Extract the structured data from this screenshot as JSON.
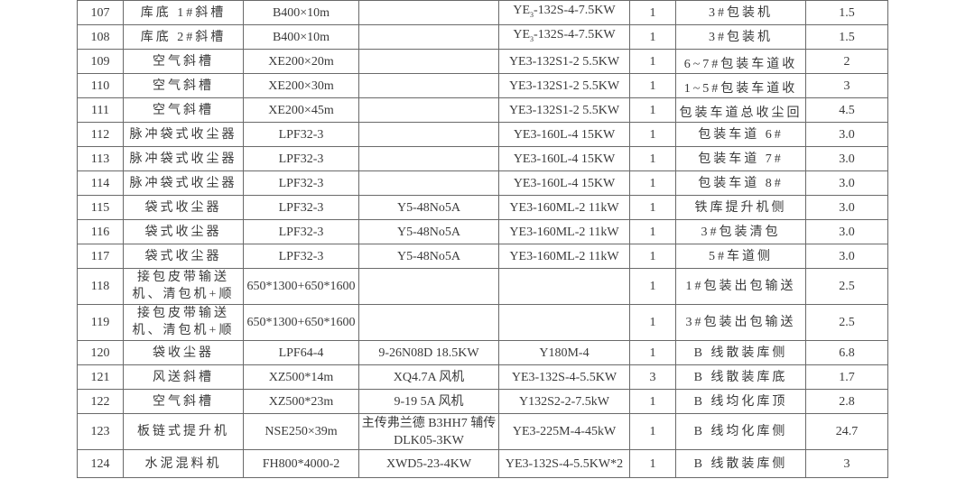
{
  "table": {
    "rows": [
      {
        "no": "107",
        "name": "库底 1#斜槽",
        "spec": "B400×10m",
        "fan": "",
        "motor": "YE",
        "motor_sub": "3",
        "motor_rest": "-132S-4-7.5KW",
        "qty": "1",
        "location": "3#包装机",
        "value": "1.5"
      },
      {
        "no": "108",
        "name": "库底 2#斜槽",
        "spec": "B400×10m",
        "fan": "",
        "motor": "YE",
        "motor_sub": "3",
        "motor_rest": "-132S-4-7.5KW",
        "qty": "1",
        "location": "3#包装机",
        "value": "1.5"
      },
      {
        "no": "109",
        "name": "空气斜槽",
        "spec": "XE200×20m",
        "fan": "",
        "motor": "YE3-132S1-2 5.5KW",
        "qty": "1",
        "location": "6~7#包装车道收尘回料",
        "value": "2"
      },
      {
        "no": "110",
        "name": "空气斜槽",
        "spec": "XE200×30m",
        "fan": "",
        "motor": "YE3-132S1-2 5.5KW",
        "qty": "1",
        "location": "1~5#包装车道收尘回料",
        "value": "3"
      },
      {
        "no": "111",
        "name": "空气斜槽",
        "spec": "XE200×45m",
        "fan": "",
        "motor": "YE3-132S1-2 5.5KW",
        "qty": "1",
        "location": "包装车道总收尘回料",
        "value": "4.5"
      },
      {
        "no": "112",
        "name": "脉冲袋式收尘器",
        "spec": "LPF32-3",
        "fan": "",
        "motor": "YE3-160L-4 15KW",
        "qty": "1",
        "location": "包装车道 6#",
        "value": "3.0"
      },
      {
        "no": "113",
        "name": "脉冲袋式收尘器",
        "spec": "LPF32-3",
        "fan": "",
        "motor": "YE3-160L-4 15KW",
        "qty": "1",
        "location": "包装车道 7#",
        "value": "3.0"
      },
      {
        "no": "114",
        "name": "脉冲袋式收尘器",
        "spec": "LPF32-3",
        "fan": "",
        "motor": "YE3-160L-4 15KW",
        "qty": "1",
        "location": "包装车道 8#",
        "value": "3.0"
      },
      {
        "no": "115",
        "name": "袋式收尘器",
        "spec": "LPF32-3",
        "fan": "Y5-48No5A",
        "motor": "YE3-160ML-2 11kW",
        "qty": "1",
        "location": "铁库提升机侧",
        "value": "3.0"
      },
      {
        "no": "116",
        "name": "袋式收尘器",
        "spec": "LPF32-3",
        "fan": "Y5-48No5A",
        "motor": "YE3-160ML-2 11kW",
        "qty": "1",
        "location": "3#包装清包",
        "value": "3.0"
      },
      {
        "no": "117",
        "name": "袋式收尘器",
        "spec": "LPF32-3",
        "fan": "Y5-48No5A",
        "motor": "YE3-160ML-2 11kW",
        "qty": "1",
        "location": "5#车道侧",
        "value": "3.0"
      },
      {
        "no": "118",
        "name": "接包皮带输送机、清包机+顺包机",
        "spec": "650*1300+650*1600",
        "fan": "",
        "motor": "",
        "qty": "1",
        "location": "1#包装出包输送",
        "value": "2.5"
      },
      {
        "no": "119",
        "name": "接包皮带输送机、清包机+顺包机",
        "spec": "650*1300+650*1600",
        "fan": "",
        "motor": "",
        "qty": "1",
        "location": "3#包装出包输送",
        "value": "2.5"
      },
      {
        "no": "120",
        "name": "袋收尘器",
        "spec": "LPF64-4",
        "fan": "9-26N08D 18.5KW",
        "motor": "Y180M-4",
        "qty": "1",
        "location": "B 线散装库侧",
        "value": "6.8"
      },
      {
        "no": "121",
        "name": "风送斜槽",
        "spec": "XZ500*14m",
        "fan": "XQ4.7A 风机",
        "motor": "YE3-132S-4-5.5KW",
        "qty": "3",
        "location": "B 线散装库底",
        "value": "1.7"
      },
      {
        "no": "122",
        "name": "空气斜槽",
        "spec": "XZ500*23m",
        "fan": "9-19 5A 风机",
        "motor": "Y132S2-2-7.5kW",
        "qty": "1",
        "location": "B 线均化库顶",
        "value": "2.8"
      },
      {
        "no": "123",
        "name": "板链式提升机",
        "spec": "NSE250×39m",
        "fan": "主传弗兰德 B3HH7 辅传 DLK05-3KW",
        "motor": "YE3-225M-4-45kW",
        "qty": "1",
        "location": "B 线均化库侧",
        "value": "24.7"
      },
      {
        "no": "124",
        "name": "水泥混料机",
        "spec": "FH800*4000-2",
        "fan": "XWD5-23-4KW",
        "motor": "YE3-132S-4-5.5KW*2",
        "qty": "1",
        "location": "B 线散装库侧",
        "value": "3"
      }
    ]
  }
}
